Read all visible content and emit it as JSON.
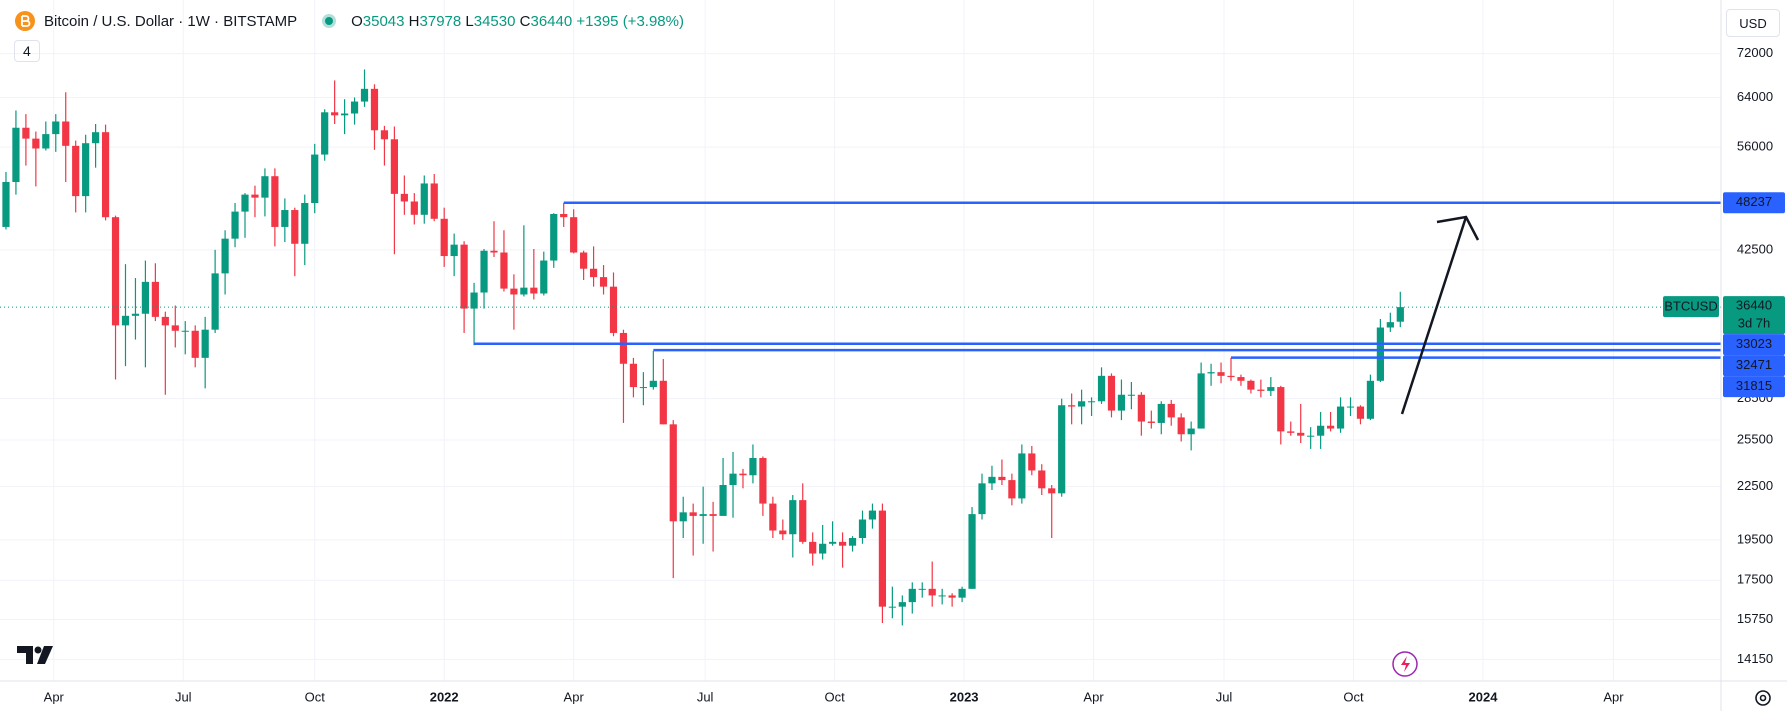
{
  "header": {
    "open_label": "O",
    "high_label": "H",
    "low_label": "L",
    "close_label": "C",
    "change": "+1395",
    "change_pct": "(+3.98%)",
    "indicators": "4",
    "currency": "USD"
  },
  "chart_data": {
    "type": "candlestick",
    "title": "Bitcoin / U.S. Dollar · 1W · BITSTAMP",
    "symbol": "BTCUSD",
    "countdown": "3d 7h",
    "x": [
      0,
      1,
      2,
      3,
      4,
      5,
      6,
      7,
      8,
      9,
      10,
      11,
      12,
      13,
      14,
      15,
      16,
      17,
      18,
      19,
      20,
      21,
      22,
      23,
      24,
      25,
      26,
      27,
      28,
      29,
      30,
      31,
      32,
      33,
      34,
      35,
      36,
      37,
      38,
      39,
      40,
      41,
      42,
      43,
      44,
      45,
      46,
      47,
      48,
      49,
      50,
      51,
      52,
      53,
      54,
      55,
      56,
      57,
      58,
      59,
      60,
      61,
      62,
      63,
      64,
      65,
      66,
      67,
      68,
      69,
      70,
      71,
      72,
      73,
      74,
      75,
      76,
      77,
      78,
      79,
      80,
      81,
      82,
      83,
      84,
      85,
      86,
      87,
      88,
      89,
      90,
      91,
      92,
      93,
      94,
      95,
      96,
      97,
      98,
      99,
      100,
      101,
      102,
      103,
      104,
      105,
      106,
      107,
      108,
      109,
      110,
      111,
      112,
      113,
      114,
      115,
      116,
      117,
      118,
      119,
      120,
      121,
      122,
      123,
      124,
      125,
      126,
      127,
      128,
      129,
      130,
      131,
      132,
      133,
      134,
      135,
      136,
      137,
      138,
      139,
      140
    ],
    "open": [
      45200,
      51000,
      59000,
      57300,
      55800,
      58000,
      60000,
      56200,
      49100,
      56600,
      58300,
      46400,
      34700,
      35600,
      35800,
      39000,
      35500,
      34700,
      34200,
      34200,
      31800,
      34300,
      39900,
      43800,
      47100,
      49300,
      48900,
      51800,
      45200,
      47300,
      43200,
      48200,
      54900,
      61500,
      61000,
      61300,
      63300,
      65500,
      58600,
      57200,
      49400,
      48400,
      46700,
      50800,
      46200,
      41800,
      43100,
      36300,
      37900,
      42400,
      42200,
      38300,
      37700,
      38400,
      37800,
      41300,
      46800,
      46400,
      42200,
      40400,
      39500,
      38500,
      34000,
      31300,
      29400,
      29400,
      29900,
      26600,
      20500,
      21000,
      20800,
      20900,
      20800,
      22600,
      23300,
      23200,
      24300,
      21500,
      20000,
      19800,
      21700,
      19400,
      18800,
      19300,
      19400,
      19200,
      19600,
      20600,
      21100,
      16300,
      16300,
      16500,
      17100,
      17100,
      16800,
      16800,
      16700,
      17100,
      20900,
      22700,
      23100,
      22900,
      21800,
      24600,
      23500,
      22400,
      22100,
      28000,
      27900,
      28300,
      28300,
      30300,
      27600,
      28800,
      28800,
      26800,
      26700,
      28100,
      27100,
      25900,
      26300,
      30500,
      30600,
      30300,
      30200,
      29900,
      29200,
      29100,
      29400,
      26100,
      26000,
      25800,
      25800,
      26500,
      26300,
      27900,
      27900,
      27000,
      29900,
      34500,
      35043
    ],
    "high": [
      52400,
      61800,
      61200,
      58400,
      60000,
      61200,
      64900,
      57000,
      57900,
      59600,
      59500,
      46600,
      40900,
      39400,
      41300,
      41000,
      36000,
      36600,
      35100,
      34700,
      35500,
      42500,
      44800,
      48200,
      49500,
      50500,
      52900,
      52900,
      48800,
      47600,
      49300,
      56500,
      62000,
      67000,
      63700,
      64000,
      69000,
      66300,
      59300,
      59200,
      51900,
      49500,
      51900,
      52100,
      47600,
      44400,
      43500,
      38900,
      42600,
      45900,
      44800,
      39800,
      45400,
      42600,
      42300,
      46900,
      48200,
      47400,
      42400,
      42900,
      40800,
      40000,
      34300,
      31800,
      30600,
      32400,
      31700,
      26900,
      21900,
      21500,
      22500,
      21600,
      24300,
      24700,
      23600,
      25200,
      24400,
      21900,
      20600,
      22000,
      22700,
      19900,
      20300,
      20500,
      19900,
      19700,
      21100,
      21500,
      21500,
      17200,
      16800,
      17400,
      17400,
      18400,
      17100,
      16900,
      17200,
      21300,
      23300,
      23800,
      24200,
      23300,
      25200,
      25100,
      23900,
      22600,
      28500,
      28900,
      29200,
      28600,
      31000,
      30500,
      30000,
      29800,
      29000,
      27600,
      28300,
      28400,
      27400,
      26800,
      31400,
      31300,
      31400,
      31800,
      30400,
      30000,
      30000,
      30200,
      29500,
      26800,
      28100,
      26400,
      27500,
      27500,
      28600,
      28600,
      28000,
      30400,
      35300,
      35900,
      37978
    ],
    "low": [
      44900,
      49300,
      53300,
      50400,
      55500,
      55300,
      51000,
      47000,
      47000,
      53000,
      46000,
      30000,
      31100,
      33400,
      31000,
      35100,
      28800,
      32700,
      32100,
      31000,
      29300,
      34000,
      37700,
      42800,
      43900,
      46400,
      46500,
      42900,
      43400,
      39600,
      40800,
      46900,
      54000,
      59600,
      58000,
      59500,
      62400,
      55600,
      53300,
      42000,
      46700,
      45500,
      45600,
      45900,
      40600,
      39600,
      34000,
      32900,
      36300,
      41700,
      38000,
      34300,
      37500,
      37200,
      37600,
      40500,
      45200,
      42100,
      39200,
      38500,
      37700,
      33700,
      26700,
      28600,
      28000,
      29200,
      26600,
      17600,
      19600,
      18700,
      19300,
      18900,
      20800,
      20700,
      22400,
      22700,
      20800,
      19600,
      19500,
      18600,
      19300,
      18200,
      18500,
      19200,
      18100,
      18900,
      19300,
      20100,
      15600,
      15800,
      15500,
      16000,
      16700,
      16300,
      16400,
      16300,
      16500,
      17100,
      20600,
      22300,
      22600,
      21400,
      21500,
      23200,
      22000,
      19600,
      21900,
      26600,
      26600,
      27200,
      28100,
      27100,
      26900,
      27700,
      25800,
      26300,
      25900,
      26500,
      25400,
      24800,
      26300,
      29500,
      29700,
      29900,
      29500,
      28900,
      28600,
      28700,
      25200,
      25800,
      25300,
      24900,
      24900,
      26100,
      26000,
      27200,
      26600,
      26900,
      29800,
      34100,
      34530
    ],
    "close": [
      51000,
      59000,
      57300,
      55800,
      58000,
      60000,
      56200,
      49100,
      56600,
      58300,
      46400,
      34700,
      35600,
      35800,
      39000,
      35500,
      34700,
      34200,
      34200,
      31800,
      34300,
      39900,
      43800,
      47100,
      49300,
      48900,
      51800,
      45200,
      47300,
      43200,
      48200,
      54900,
      61500,
      61000,
      61300,
      63300,
      65500,
      58600,
      57200,
      49400,
      48400,
      46700,
      50800,
      46200,
      41800,
      43100,
      36300,
      37900,
      42400,
      42200,
      38300,
      37700,
      38400,
      37800,
      41300,
      46800,
      46400,
      42200,
      40400,
      39500,
      38500,
      34000,
      31300,
      29400,
      29400,
      29900,
      26600,
      20500,
      21000,
      20800,
      20900,
      20800,
      22600,
      23300,
      23200,
      24300,
      21500,
      20000,
      19800,
      21700,
      19400,
      18800,
      19300,
      19400,
      19200,
      19600,
      20600,
      21100,
      16300,
      16300,
      16500,
      17100,
      17100,
      16800,
      16800,
      16700,
      17100,
      20900,
      22700,
      23100,
      22900,
      21800,
      24600,
      23500,
      22400,
      22100,
      28000,
      27900,
      28300,
      28300,
      30300,
      27600,
      28800,
      28800,
      26800,
      26700,
      28100,
      27100,
      25900,
      26300,
      30500,
      30600,
      30300,
      30200,
      29900,
      29200,
      29100,
      29400,
      26100,
      26000,
      25800,
      25800,
      26500,
      26300,
      27900,
      27900,
      27000,
      29900,
      34500,
      35000,
      36440
    ],
    "up_color": "#089981",
    "down_color": "#f23645",
    "log_scale": true,
    "grid": true,
    "ylim": [
      13350,
      83150
    ],
    "yticks": [
      72000,
      64000,
      56000,
      42500,
      28500,
      25500,
      22500,
      19500,
      17500,
      15750,
      14150
    ],
    "xlim": [
      -0.6,
      172.2
    ],
    "xticks": [
      {
        "value": 4.8,
        "label": "Apr"
      },
      {
        "value": 17.8,
        "label": "Jul"
      },
      {
        "value": 31,
        "label": "Oct"
      },
      {
        "value": 44,
        "label": "2022"
      },
      {
        "value": 57,
        "label": "Apr"
      },
      {
        "value": 70.2,
        "label": "Jul"
      },
      {
        "value": 83.2,
        "label": "Oct"
      },
      {
        "value": 96.2,
        "label": "2023"
      },
      {
        "value": 109.2,
        "label": "Apr"
      },
      {
        "value": 122.3,
        "label": "Jul"
      },
      {
        "value": 135.3,
        "label": "Oct"
      },
      {
        "value": 148.3,
        "label": "2024"
      },
      {
        "value": 161.4,
        "label": "Apr"
      }
    ],
    "levels": [
      {
        "value": 48237,
        "x": 56
      },
      {
        "value": 33023,
        "x": 47
      },
      {
        "value": 32471,
        "x": 65
      },
      {
        "value": 31815,
        "x": 123
      }
    ],
    "level_color": "#2962ff"
  }
}
